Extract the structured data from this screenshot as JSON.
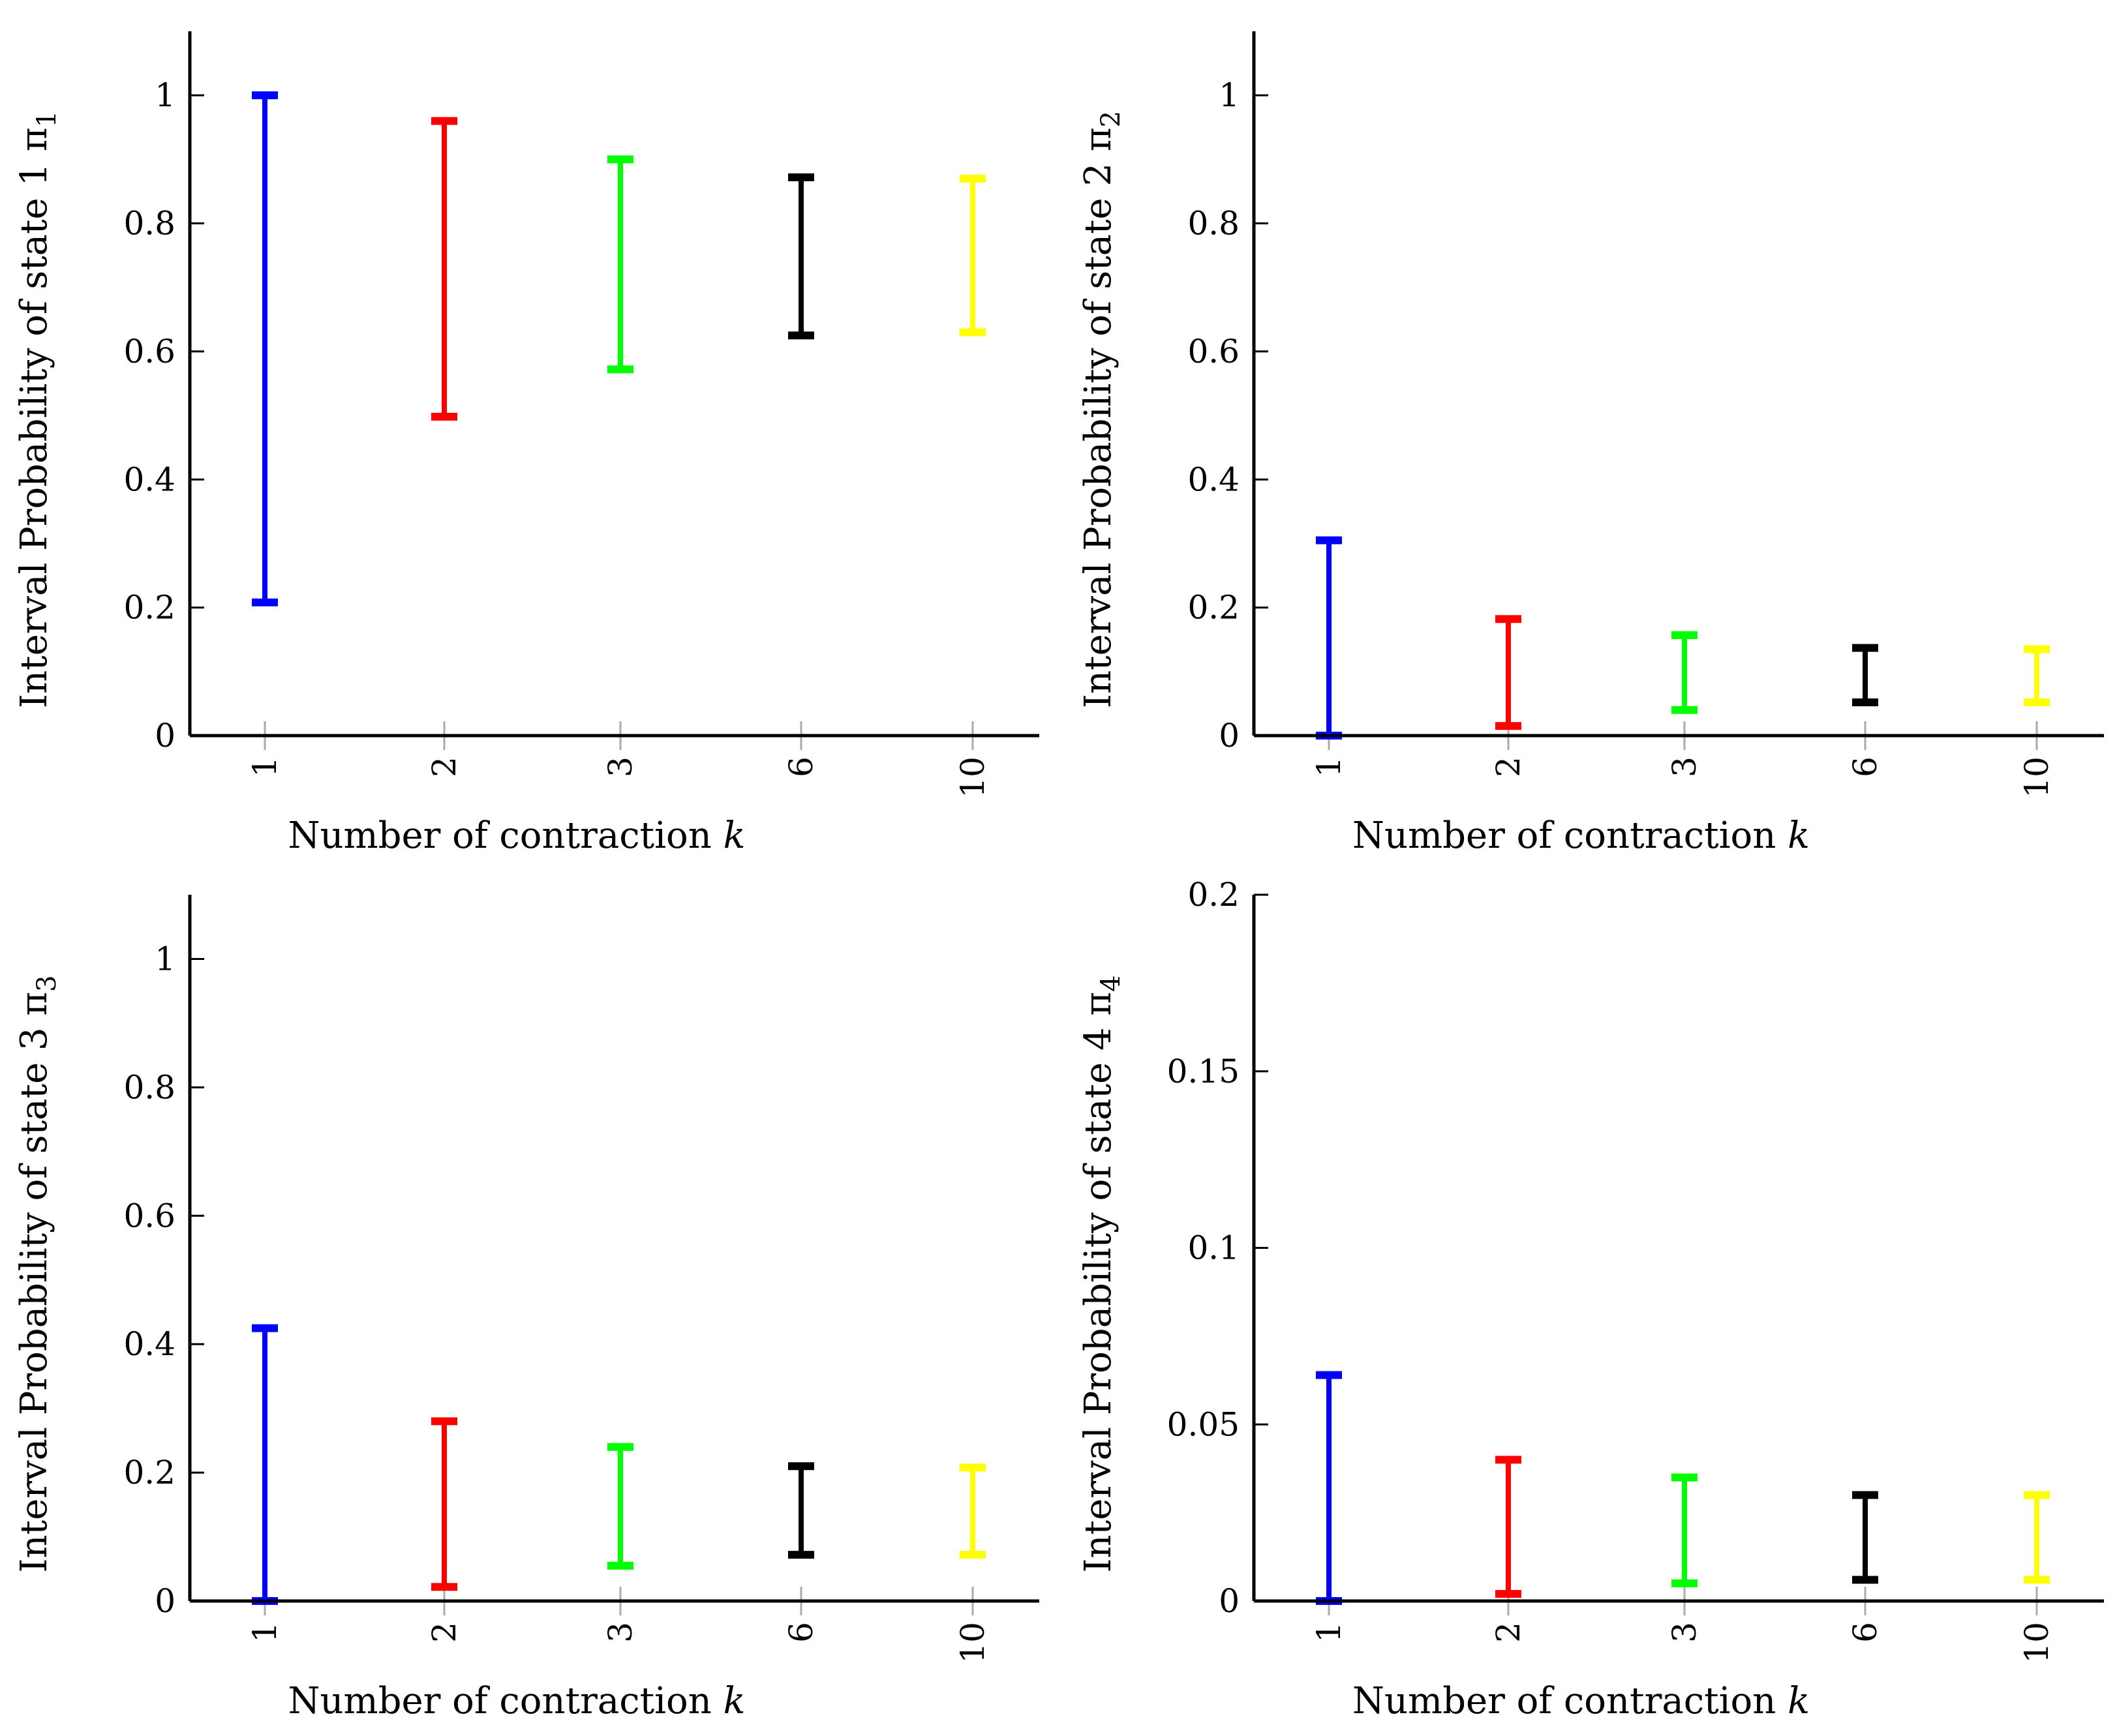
{
  "figure": {
    "colors": {
      "axis": "#000000",
      "tick_mark": "#aaaaaa",
      "background": "#ffffff"
    }
  },
  "chart_data": [
    {
      "type": "errorbar-interval",
      "id": "pi1",
      "title": "",
      "xlabel": "Number of contraction k",
      "ylabel": "Interval Probability of state 1 π1",
      "ylabel_main": "Interval Probability of state 1 π",
      "ylabel_sub": "1",
      "categories": [
        "1",
        "2",
        "3",
        "6",
        "10"
      ],
      "ylim": [
        0,
        1.1
      ],
      "yticks": [
        0,
        0.2,
        0.4,
        0.6,
        0.8,
        1
      ],
      "ytick_labels": [
        "0",
        "0.2",
        "0.4",
        "0.6",
        "0.8",
        "1"
      ],
      "series": [
        {
          "name": "k=1",
          "low": 0.208,
          "high": 1.0,
          "color": "#0000ff"
        },
        {
          "name": "k=2",
          "low": 0.498,
          "high": 0.96,
          "color": "#ff0000"
        },
        {
          "name": "k=3",
          "low": 0.572,
          "high": 0.9,
          "color": "#00ff00"
        },
        {
          "name": "k=6",
          "low": 0.625,
          "high": 0.872,
          "color": "#000000"
        },
        {
          "name": "k=10",
          "low": 0.63,
          "high": 0.87,
          "color": "#ffff00"
        }
      ]
    },
    {
      "type": "errorbar-interval",
      "id": "pi2",
      "title": "",
      "xlabel": "Number of contraction k",
      "ylabel": "Interval Probability of state 2 π2",
      "ylabel_main": "Interval Probability of state 2 π",
      "ylabel_sub": "2",
      "categories": [
        "1",
        "2",
        "3",
        "6",
        "10"
      ],
      "ylim": [
        0,
        1.1
      ],
      "yticks": [
        0,
        0.2,
        0.4,
        0.6,
        0.8,
        1
      ],
      "ytick_labels": [
        "0",
        "0.2",
        "0.4",
        "0.6",
        "0.8",
        "1"
      ],
      "series": [
        {
          "name": "k=1",
          "low": 0.0,
          "high": 0.305,
          "color": "#0000ff"
        },
        {
          "name": "k=2",
          "low": 0.015,
          "high": 0.182,
          "color": "#ff0000"
        },
        {
          "name": "k=3",
          "low": 0.04,
          "high": 0.157,
          "color": "#00ff00"
        },
        {
          "name": "k=6",
          "low": 0.052,
          "high": 0.137,
          "color": "#000000"
        },
        {
          "name": "k=10",
          "low": 0.052,
          "high": 0.135,
          "color": "#ffff00"
        }
      ]
    },
    {
      "type": "errorbar-interval",
      "id": "pi3",
      "title": "",
      "xlabel": "Number of contraction k",
      "ylabel": "Interval Probability of state 3 π3",
      "ylabel_main": "Interval Probability of state 3 π",
      "ylabel_sub": "3",
      "categories": [
        "1",
        "2",
        "3",
        "6",
        "10"
      ],
      "ylim": [
        0,
        1.1
      ],
      "yticks": [
        0,
        0.2,
        0.4,
        0.6,
        0.8,
        1
      ],
      "ytick_labels": [
        "0",
        "0.2",
        "0.4",
        "0.6",
        "0.8",
        "1"
      ],
      "series": [
        {
          "name": "k=1",
          "low": 0.0,
          "high": 0.425,
          "color": "#0000ff"
        },
        {
          "name": "k=2",
          "low": 0.022,
          "high": 0.28,
          "color": "#ff0000"
        },
        {
          "name": "k=3",
          "low": 0.055,
          "high": 0.24,
          "color": "#00ff00"
        },
        {
          "name": "k=6",
          "low": 0.072,
          "high": 0.21,
          "color": "#000000"
        },
        {
          "name": "k=10",
          "low": 0.072,
          "high": 0.208,
          "color": "#ffff00"
        }
      ]
    },
    {
      "type": "errorbar-interval",
      "id": "pi4",
      "title": "",
      "xlabel": "Number of contraction k",
      "ylabel": "Interval Probability of state 4 π4",
      "ylabel_main": "Interval Probability of state 4 π",
      "ylabel_sub": "4",
      "categories": [
        "1",
        "2",
        "3",
        "6",
        "10"
      ],
      "ylim": [
        0,
        0.2
      ],
      "yticks": [
        0,
        0.05,
        0.1,
        0.15,
        0.2
      ],
      "ytick_labels": [
        "0",
        "0.05",
        "0.1",
        "0.15",
        "0.2"
      ],
      "series": [
        {
          "name": "k=1",
          "low": 0.0,
          "high": 0.064,
          "color": "#0000ff"
        },
        {
          "name": "k=2",
          "low": 0.002,
          "high": 0.04,
          "color": "#ff0000"
        },
        {
          "name": "k=3",
          "low": 0.005,
          "high": 0.035,
          "color": "#00ff00"
        },
        {
          "name": "k=6",
          "low": 0.006,
          "high": 0.03,
          "color": "#000000"
        },
        {
          "name": "k=10",
          "low": 0.006,
          "high": 0.03,
          "color": "#ffff00"
        }
      ]
    }
  ]
}
